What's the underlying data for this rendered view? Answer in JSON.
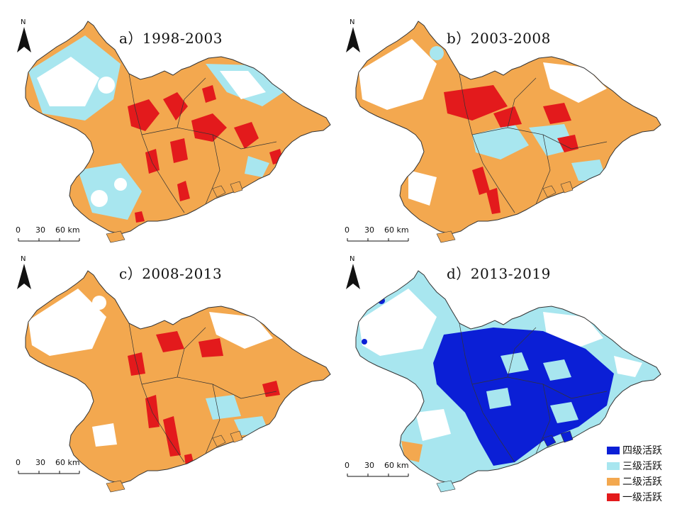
{
  "colors": {
    "level4": "#0b1fd6",
    "level3": "#a8e6ef",
    "level2": "#f3a84f",
    "level1": "#e31a1c",
    "background": "#ffffff",
    "boundary": "#333333"
  },
  "panels": [
    {
      "id": "a",
      "title": "a）1998-2003"
    },
    {
      "id": "b",
      "title": "b）2003-2008"
    },
    {
      "id": "c",
      "title": "c）2008-2013"
    },
    {
      "id": "d",
      "title": "d）2013-2019"
    }
  ],
  "north_label": "N",
  "scalebar": {
    "ticks": [
      "0",
      "30",
      "60 km"
    ]
  },
  "legend": {
    "items": [
      {
        "label": "四级活跃",
        "color": "#0b1fd6"
      },
      {
        "label": "三级活跃",
        "color": "#a8e6ef"
      },
      {
        "label": "二级活跃",
        "color": "#f3a84f"
      },
      {
        "label": "一级活跃",
        "color": "#e31a1c"
      }
    ]
  }
}
